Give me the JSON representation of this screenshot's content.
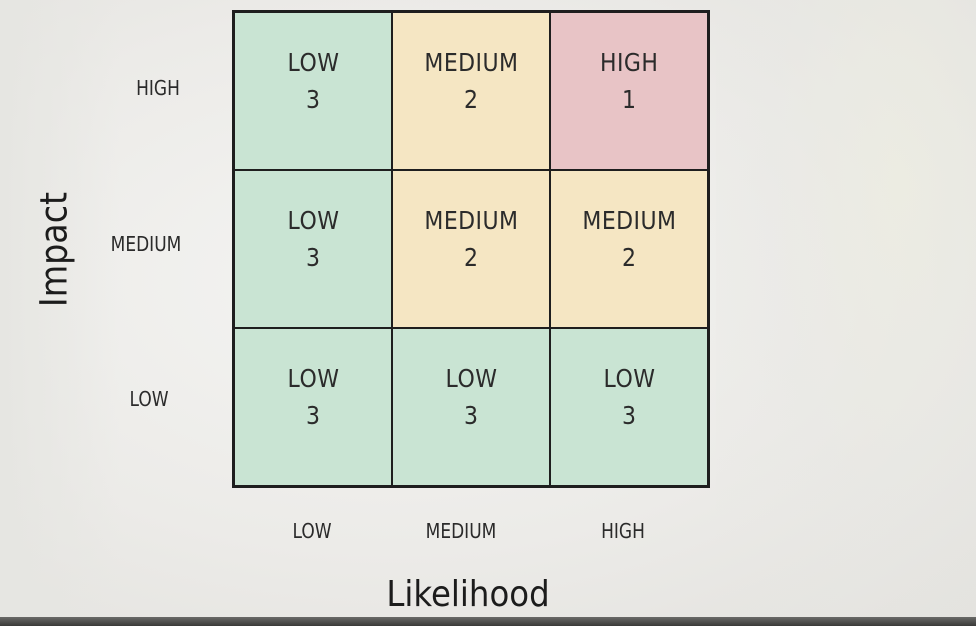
{
  "axes": {
    "y_title": "Impact",
    "x_title": "Likelihood",
    "y_levels": [
      "HIGH",
      "MEDIUM",
      "LOW"
    ],
    "x_levels": [
      "LOW",
      "MEDIUM",
      "HIGH"
    ]
  },
  "matrix": {
    "rows": [
      {
        "impact": "HIGH",
        "cells": [
          {
            "level": "LOW",
            "score": "3",
            "color": "#c9e4d3"
          },
          {
            "level": "MEDIUM",
            "score": "2",
            "color": "#f5e6c3"
          },
          {
            "level": "HIGH",
            "score": "1",
            "color": "#e8c4c6"
          }
        ]
      },
      {
        "impact": "MEDIUM",
        "cells": [
          {
            "level": "LOW",
            "score": "3",
            "color": "#c9e4d3"
          },
          {
            "level": "MEDIUM",
            "score": "2",
            "color": "#f5e6c3"
          },
          {
            "level": "MEDIUM",
            "score": "2",
            "color": "#f5e6c3"
          }
        ]
      },
      {
        "impact": "LOW",
        "cells": [
          {
            "level": "LOW",
            "score": "3",
            "color": "#c9e4d3"
          },
          {
            "level": "LOW",
            "score": "3",
            "color": "#c9e4d3"
          },
          {
            "level": "LOW",
            "score": "3",
            "color": "#c9e4d3"
          }
        ]
      }
    ]
  },
  "colors": {
    "low": "#c9e4d3",
    "medium": "#f5e6c3",
    "high": "#e8c4c6",
    "grid_line": "#1e1e1e"
  }
}
